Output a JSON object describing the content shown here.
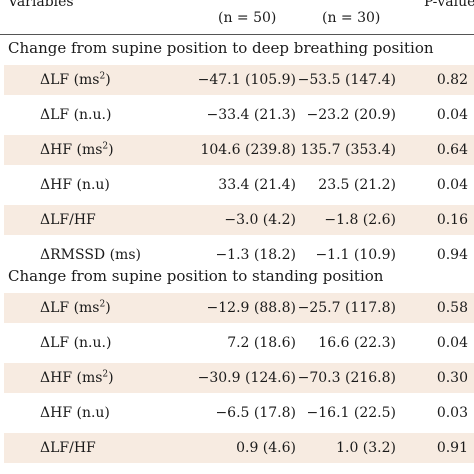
{
  "header": {
    "variables": "Variables",
    "group1_n": "(n = 50)",
    "group2_n": "(n = 30)",
    "p_value": "P-value*"
  },
  "sections": [
    {
      "title": "Change from supine position to deep breathing position",
      "rows": [
        {
          "name": "ΔLF (ms",
          "sup": "2",
          "tail": ")",
          "g1": "−47.1 (105.9)",
          "g2": "−53.5 (147.4)",
          "p": "0.82"
        },
        {
          "name": "ΔLF (n.u.)",
          "sup": "",
          "tail": "",
          "g1": "−33.4 (21.3)",
          "g2": "−23.2 (20.9)",
          "p": "0.04"
        },
        {
          "name": "ΔHF (ms",
          "sup": "2",
          "tail": ")",
          "g1": "104.6 (239.8)",
          "g2": "135.7 (353.4)",
          "p": "0.64"
        },
        {
          "name": "ΔHF (n.u)",
          "sup": "",
          "tail": "",
          "g1": "33.4 (21.4)",
          "g2": "23.5 (21.2)",
          "p": "0.04"
        },
        {
          "name": "ΔLF/HF",
          "sup": "",
          "tail": "",
          "g1": "−3.0 (4.2)",
          "g2": "−1.8 (2.6)",
          "p": "0.16"
        },
        {
          "name": "ΔRMSSD (ms)",
          "sup": "",
          "tail": "",
          "g1": "−1.3 (18.2)",
          "g2": "−1.1 (10.9)",
          "p": "0.94"
        }
      ]
    },
    {
      "title": "Change from supine position to standing position",
      "rows": [
        {
          "name": "ΔLF (ms",
          "sup": "2",
          "tail": ")",
          "g1": "−12.9 (88.8)",
          "g2": "−25.7 (117.8)",
          "p": "0.58"
        },
        {
          "name": "ΔLF (n.u.)",
          "sup": "",
          "tail": "",
          "g1": "7.2 (18.6)",
          "g2": "16.6 (22.3)",
          "p": "0.04"
        },
        {
          "name": "ΔHF (ms",
          "sup": "2",
          "tail": ")",
          "g1": "−30.9 (124.6)",
          "g2": "−70.3 (216.8)",
          "p": "0.30"
        },
        {
          "name": "ΔHF (n.u)",
          "sup": "",
          "tail": "",
          "g1": "−6.5 (17.8)",
          "g2": "−16.1 (22.5)",
          "p": "0.03"
        },
        {
          "name": "ΔLF/HF",
          "sup": "",
          "tail": "",
          "g1": "0.9 (4.6)",
          "g2": "1.0 (3.2)",
          "p": "0.91"
        }
      ]
    }
  ]
}
